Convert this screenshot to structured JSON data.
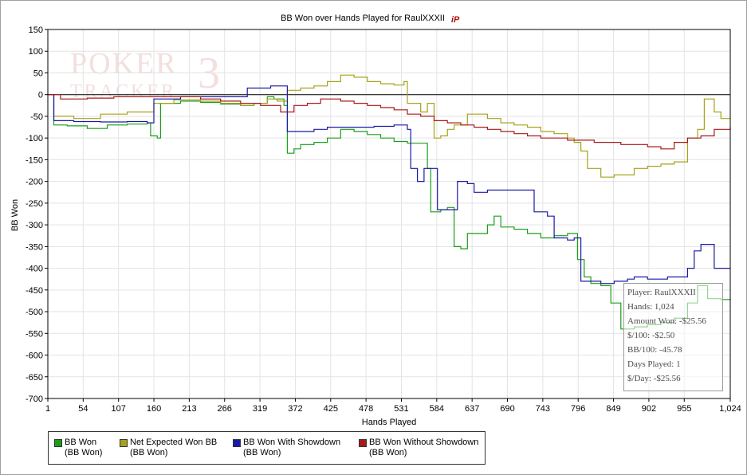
{
  "chart_data": {
    "type": "line",
    "title": "BB Won over Hands Played for RaulXXXII",
    "xlabel": "Hands Played",
    "ylabel": "BB Won",
    "xlim": [
      1,
      1024
    ],
    "ylim": [
      -700,
      150
    ],
    "x_ticks": [
      "1",
      "54",
      "107",
      "160",
      "213",
      "266",
      "319",
      "372",
      "425",
      "478",
      "531",
      "584",
      "637",
      "690",
      "743",
      "796",
      "849",
      "902",
      "955",
      "1,024"
    ],
    "x_tick_values": [
      1,
      54,
      107,
      160,
      213,
      266,
      319,
      372,
      425,
      478,
      531,
      584,
      637,
      690,
      743,
      796,
      849,
      902,
      955,
      1024
    ],
    "y_ticks": [
      150,
      100,
      50,
      0,
      -50,
      -100,
      -150,
      -200,
      -250,
      -300,
      -350,
      -400,
      -450,
      -500,
      -550,
      -600,
      -650,
      -700
    ],
    "y_tick_labels": [
      "150",
      "100",
      "50",
      "0",
      "-50",
      "-100",
      "-150",
      "-200",
      "-250",
      "-300",
      "-350",
      "-400",
      "-450",
      "-500",
      "-550",
      "-600",
      "-650",
      "-700"
    ],
    "grid": true,
    "legend_position": "bottom-left",
    "series": [
      {
        "name": "BB Won",
        "unit": "(BB Won)",
        "color": "#1a9e1a",
        "points": [
          [
            1,
            0
          ],
          [
            10,
            -70
          ],
          [
            30,
            -72
          ],
          [
            60,
            -78
          ],
          [
            90,
            -70
          ],
          [
            120,
            -68
          ],
          [
            150,
            -65
          ],
          [
            155,
            -95
          ],
          [
            165,
            -100
          ],
          [
            170,
            -20
          ],
          [
            200,
            -15
          ],
          [
            230,
            -18
          ],
          [
            260,
            -22
          ],
          [
            290,
            -25
          ],
          [
            310,
            -20
          ],
          [
            330,
            -5
          ],
          [
            340,
            -10
          ],
          [
            355,
            -25
          ],
          [
            360,
            -135
          ],
          [
            370,
            -125
          ],
          [
            380,
            -115
          ],
          [
            400,
            -110
          ],
          [
            420,
            -100
          ],
          [
            440,
            -80
          ],
          [
            460,
            -85
          ],
          [
            480,
            -92
          ],
          [
            500,
            -100
          ],
          [
            520,
            -108
          ],
          [
            540,
            -112
          ],
          [
            570,
            -170
          ],
          [
            575,
            -270
          ],
          [
            590,
            -265
          ],
          [
            600,
            -260
          ],
          [
            610,
            -350
          ],
          [
            620,
            -355
          ],
          [
            630,
            -320
          ],
          [
            660,
            -300
          ],
          [
            670,
            -280
          ],
          [
            680,
            -305
          ],
          [
            700,
            -310
          ],
          [
            720,
            -320
          ],
          [
            740,
            -330
          ],
          [
            760,
            -325
          ],
          [
            780,
            -320
          ],
          [
            795,
            -380
          ],
          [
            805,
            -420
          ],
          [
            815,
            -435
          ],
          [
            830,
            -440
          ],
          [
            845,
            -480
          ],
          [
            860,
            -540
          ],
          [
            880,
            -535
          ],
          [
            900,
            -530
          ],
          [
            920,
            -525
          ],
          [
            940,
            -515
          ],
          [
            960,
            -480
          ],
          [
            975,
            -440
          ],
          [
            990,
            -470
          ],
          [
            1010,
            -472
          ],
          [
            1024,
            -470
          ]
        ]
      },
      {
        "name": "Net Expected Won BB",
        "unit": "(BB Won)",
        "color": "#a6a21a",
        "points": [
          [
            1,
            0
          ],
          [
            10,
            -50
          ],
          [
            40,
            -55
          ],
          [
            80,
            -45
          ],
          [
            120,
            -40
          ],
          [
            150,
            -40
          ],
          [
            160,
            -20
          ],
          [
            190,
            -12
          ],
          [
            230,
            -15
          ],
          [
            260,
            -20
          ],
          [
            290,
            -25
          ],
          [
            310,
            -20
          ],
          [
            330,
            -10
          ],
          [
            345,
            -15
          ],
          [
            360,
            10
          ],
          [
            380,
            15
          ],
          [
            400,
            20
          ],
          [
            420,
            30
          ],
          [
            440,
            45
          ],
          [
            460,
            40
          ],
          [
            480,
            30
          ],
          [
            500,
            25
          ],
          [
            520,
            22
          ],
          [
            535,
            30
          ],
          [
            540,
            -20
          ],
          [
            560,
            -40
          ],
          [
            570,
            -20
          ],
          [
            580,
            -100
          ],
          [
            590,
            -95
          ],
          [
            600,
            -80
          ],
          [
            610,
            -70
          ],
          [
            630,
            -45
          ],
          [
            660,
            -55
          ],
          [
            680,
            -65
          ],
          [
            700,
            -70
          ],
          [
            720,
            -75
          ],
          [
            740,
            -85
          ],
          [
            760,
            -90
          ],
          [
            780,
            -100
          ],
          [
            790,
            -110
          ],
          [
            800,
            -130
          ],
          [
            810,
            -170
          ],
          [
            830,
            -190
          ],
          [
            850,
            -185
          ],
          [
            880,
            -170
          ],
          [
            900,
            -165
          ],
          [
            920,
            -160
          ],
          [
            940,
            -155
          ],
          [
            960,
            -100
          ],
          [
            975,
            -80
          ],
          [
            985,
            -10
          ],
          [
            1000,
            -40
          ],
          [
            1010,
            -55
          ],
          [
            1024,
            -55
          ]
        ]
      },
      {
        "name": "BB Won With Showdown",
        "unit": "(BB Won)",
        "color": "#1a1aa6",
        "points": [
          [
            1,
            0
          ],
          [
            10,
            -60
          ],
          [
            40,
            -62
          ],
          [
            80,
            -63
          ],
          [
            120,
            -62
          ],
          [
            150,
            -65
          ],
          [
            160,
            -10
          ],
          [
            200,
            -5
          ],
          [
            260,
            -5
          ],
          [
            290,
            -5
          ],
          [
            300,
            15
          ],
          [
            320,
            15
          ],
          [
            335,
            20
          ],
          [
            355,
            20
          ],
          [
            360,
            -85
          ],
          [
            400,
            -80
          ],
          [
            420,
            -75
          ],
          [
            460,
            -75
          ],
          [
            490,
            -73
          ],
          [
            520,
            -70
          ],
          [
            540,
            -80
          ],
          [
            545,
            -170
          ],
          [
            555,
            -200
          ],
          [
            560,
            -200
          ],
          [
            565,
            -170
          ],
          [
            575,
            -170
          ],
          [
            585,
            -265
          ],
          [
            600,
            -265
          ],
          [
            615,
            -200
          ],
          [
            630,
            -205
          ],
          [
            640,
            -225
          ],
          [
            660,
            -220
          ],
          [
            680,
            -220
          ],
          [
            700,
            -220
          ],
          [
            720,
            -220
          ],
          [
            730,
            -270
          ],
          [
            750,
            -280
          ],
          [
            760,
            -330
          ],
          [
            780,
            -335
          ],
          [
            790,
            -330
          ],
          [
            800,
            -430
          ],
          [
            830,
            -435
          ],
          [
            850,
            -430
          ],
          [
            870,
            -425
          ],
          [
            880,
            -420
          ],
          [
            900,
            -425
          ],
          [
            930,
            -420
          ],
          [
            960,
            -400
          ],
          [
            970,
            -360
          ],
          [
            980,
            -345
          ],
          [
            1000,
            -400
          ],
          [
            1024,
            -400
          ]
        ]
      },
      {
        "name": "BB Won Without Showdown",
        "unit": "(BB Won)",
        "color": "#a61a1a",
        "points": [
          [
            1,
            0
          ],
          [
            20,
            -10
          ],
          [
            60,
            -8
          ],
          [
            100,
            -5
          ],
          [
            140,
            -5
          ],
          [
            170,
            -5
          ],
          [
            200,
            -5
          ],
          [
            230,
            -10
          ],
          [
            260,
            -15
          ],
          [
            290,
            -20
          ],
          [
            320,
            -25
          ],
          [
            350,
            -40
          ],
          [
            370,
            -25
          ],
          [
            390,
            -20
          ],
          [
            410,
            -10
          ],
          [
            440,
            -15
          ],
          [
            460,
            -20
          ],
          [
            480,
            -25
          ],
          [
            500,
            -30
          ],
          [
            520,
            -35
          ],
          [
            540,
            -45
          ],
          [
            560,
            -50
          ],
          [
            580,
            -60
          ],
          [
            600,
            -65
          ],
          [
            620,
            -70
          ],
          [
            640,
            -75
          ],
          [
            660,
            -80
          ],
          [
            680,
            -85
          ],
          [
            700,
            -90
          ],
          [
            720,
            -95
          ],
          [
            740,
            -100
          ],
          [
            760,
            -100
          ],
          [
            780,
            -105
          ],
          [
            800,
            -105
          ],
          [
            820,
            -110
          ],
          [
            840,
            -110
          ],
          [
            860,
            -115
          ],
          [
            880,
            -115
          ],
          [
            900,
            -120
          ],
          [
            920,
            -125
          ],
          [
            940,
            -110
          ],
          [
            960,
            -100
          ],
          [
            980,
            -95
          ],
          [
            1000,
            -80
          ],
          [
            1024,
            -75
          ]
        ]
      }
    ]
  },
  "legend": [
    {
      "label": "BB Won",
      "sub": "(BB Won)",
      "color": "#1a9e1a"
    },
    {
      "label": "Net Expected Won BB",
      "sub": "(BB Won)",
      "color": "#a6a21a"
    },
    {
      "label": "BB Won With Showdown",
      "sub": "(BB Won)",
      "color": "#1a1aa6"
    },
    {
      "label": "BB Won Without Showdown",
      "sub": "(BB Won)",
      "color": "#a61a1a"
    }
  ],
  "tooltip": {
    "player": "Player: RaulXXXII",
    "hands": "Hands: 1,024",
    "amount_won": "Amount Won: -$25.56",
    "dollars_per_100": "$/100: -$2.50",
    "bb_per_100": "BB/100: -45.78",
    "days_played": "Days Played: 1",
    "per_day": "$/Day: -$25.56"
  },
  "watermark": {
    "line1": "POKER",
    "line2": "TRACKER",
    "version": "3"
  },
  "title_logo": "iP"
}
